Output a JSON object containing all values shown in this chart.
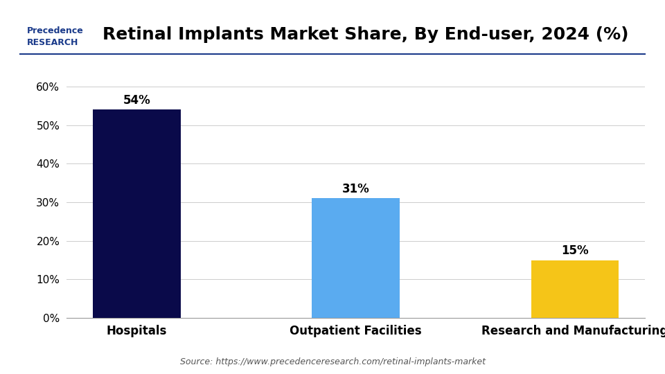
{
  "title": "Retinal Implants Market Share, By End-user, 2024 (%)",
  "categories": [
    "Hospitals",
    "Outpatient Facilities",
    "Research and Manufacturing"
  ],
  "values": [
    54,
    31,
    15
  ],
  "bar_colors": [
    "#0a0a4a",
    "#5aabf0",
    "#f5c518"
  ],
  "ylim": [
    0,
    65
  ],
  "yticks": [
    0,
    10,
    20,
    30,
    40,
    50,
    60
  ],
  "ytick_labels": [
    "0%",
    "10%",
    "20%",
    "30%",
    "40%",
    "50%",
    "60%"
  ],
  "source_text": "Source: https://www.precedenceresearch.com/retinal-implants-market",
  "background_color": "#ffffff",
  "bar_width": 0.4,
  "title_fontsize": 18,
  "label_fontsize": 12,
  "annotation_fontsize": 12,
  "source_fontsize": 9
}
